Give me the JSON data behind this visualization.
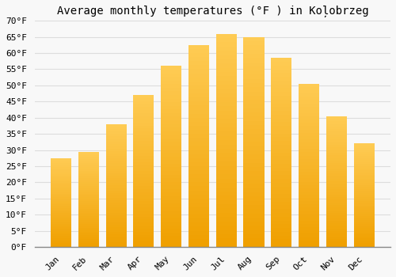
{
  "title": "Average monthly temperatures (°F ) in Koļobrzeg",
  "months": [
    "Jan",
    "Feb",
    "Mar",
    "Apr",
    "May",
    "Jun",
    "Jul",
    "Aug",
    "Sep",
    "Oct",
    "Nov",
    "Dec"
  ],
  "values": [
    27.5,
    29.5,
    38.0,
    47.0,
    56.0,
    62.5,
    66.0,
    65.0,
    58.5,
    50.5,
    40.5,
    32.0
  ],
  "bar_color_top": "#FFCC55",
  "bar_color_bottom": "#F0A000",
  "bar_edge_color": "none",
  "background_color": "#F8F8F8",
  "grid_color": "#DDDDDD",
  "ylim": [
    0,
    70
  ],
  "yticks": [
    0,
    5,
    10,
    15,
    20,
    25,
    30,
    35,
    40,
    45,
    50,
    55,
    60,
    65,
    70
  ],
  "ylabel_suffix": "°F",
  "title_fontsize": 10,
  "tick_fontsize": 8,
  "font_family": "monospace"
}
